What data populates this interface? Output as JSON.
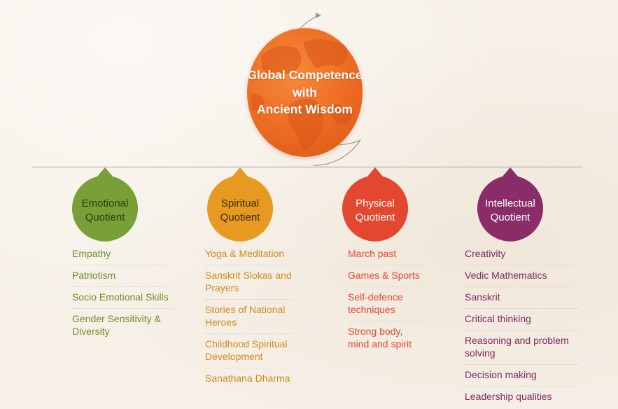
{
  "center": {
    "title_lines": [
      "Global Competence",
      "with",
      "Ancient Wisdom"
    ],
    "color": "#ec6a21"
  },
  "quotients": [
    {
      "label_lines": [
        "Emotional",
        "Quotient"
      ],
      "color": "#79a037",
      "text_color": "#2e3a13",
      "items": [
        "Empathy",
        "Patriotism",
        "Socio Emotional Skills",
        "Gender Sensitivity & Diversity"
      ]
    },
    {
      "label_lines": [
        "Spiritual",
        "Quotient"
      ],
      "color": "#e69a22",
      "text_color": "#3b2a0a",
      "items": [
        "Yoga & Meditation",
        "Sanskrit Slokas and Prayers",
        "Stories of National Heroes",
        "Childhood Spiritual Development",
        "Sanathana Dharma"
      ]
    },
    {
      "label_lines": [
        "Physical",
        "Quotient"
      ],
      "color": "#e3472f",
      "text_color": "#ffffff",
      "items": [
        "March past",
        "Games & Sports",
        "Self-defence techniques",
        "Strong body, mind and spirit"
      ]
    },
    {
      "label_lines": [
        "Intellectual",
        "Quotient"
      ],
      "color": "#8a2c68",
      "text_color": "#ffffff",
      "items": [
        "Creativity",
        "Vedic Mathematics",
        "Sanskrit",
        "Critical thinking",
        "Reasoning and problem solving",
        "Decision making",
        "Leadership qualities"
      ]
    }
  ]
}
